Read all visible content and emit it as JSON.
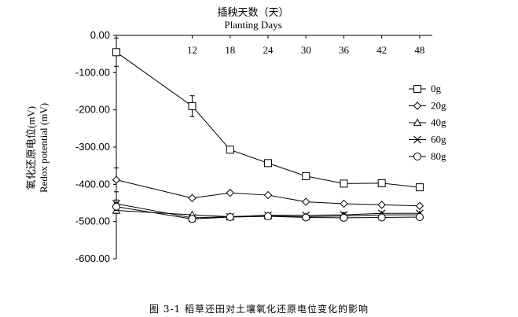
{
  "caption": "图 3-1  稻草还田对土壤氧化还原电位变化的影响",
  "chart_data": {
    "type": "line",
    "xlabel_cn": "插秧天数（天）",
    "xlabel_en": "Planting Days",
    "ylabel_cn": "氧化还原电位(mV)",
    "ylabel_en": "Redox potential (mV)",
    "x": [
      0,
      12,
      18,
      24,
      30,
      36,
      42,
      48
    ],
    "x_tick_labels": [
      "12",
      "18",
      "24",
      "30",
      "36",
      "42",
      "48"
    ],
    "y_tick_labels": [
      "0.00",
      "-100.00",
      "-200.00",
      "-300.00",
      "-400.00",
      "-500.00",
      "-600.00"
    ],
    "ylim": [
      -600,
      0
    ],
    "xlim": [
      0,
      50
    ],
    "x_axis_position": "top",
    "legend_position": "right",
    "grid": false,
    "series": [
      {
        "name": "0g",
        "marker": "square",
        "values": [
          -45,
          -190,
          -307,
          -343,
          -378,
          -398,
          -397,
          -408
        ],
        "error": [
          38,
          28,
          0,
          0,
          0,
          0,
          0,
          0
        ]
      },
      {
        "name": "20g",
        "marker": "diamond",
        "values": [
          -388,
          -437,
          -423,
          -429,
          -447,
          -452,
          -455,
          -458
        ],
        "error": [
          32,
          0,
          0,
          0,
          0,
          0,
          0,
          0
        ]
      },
      {
        "name": "40g",
        "marker": "triangle",
        "values": [
          -470,
          -482,
          -487,
          -485,
          -487,
          -485,
          -482,
          -482
        ],
        "error": [
          8,
          0,
          0,
          0,
          0,
          0,
          0,
          0
        ]
      },
      {
        "name": "60g",
        "marker": "x",
        "values": [
          -452,
          -490,
          -487,
          -483,
          -483,
          -482,
          -478,
          -478
        ],
        "error": [
          10,
          0,
          0,
          0,
          0,
          6,
          0,
          0
        ]
      },
      {
        "name": "80g",
        "marker": "circle",
        "values": [
          -460,
          -493,
          -488,
          -486,
          -489,
          -490,
          -489,
          -488
        ],
        "error": [
          10,
          0,
          0,
          0,
          0,
          0,
          0,
          0
        ]
      }
    ]
  }
}
